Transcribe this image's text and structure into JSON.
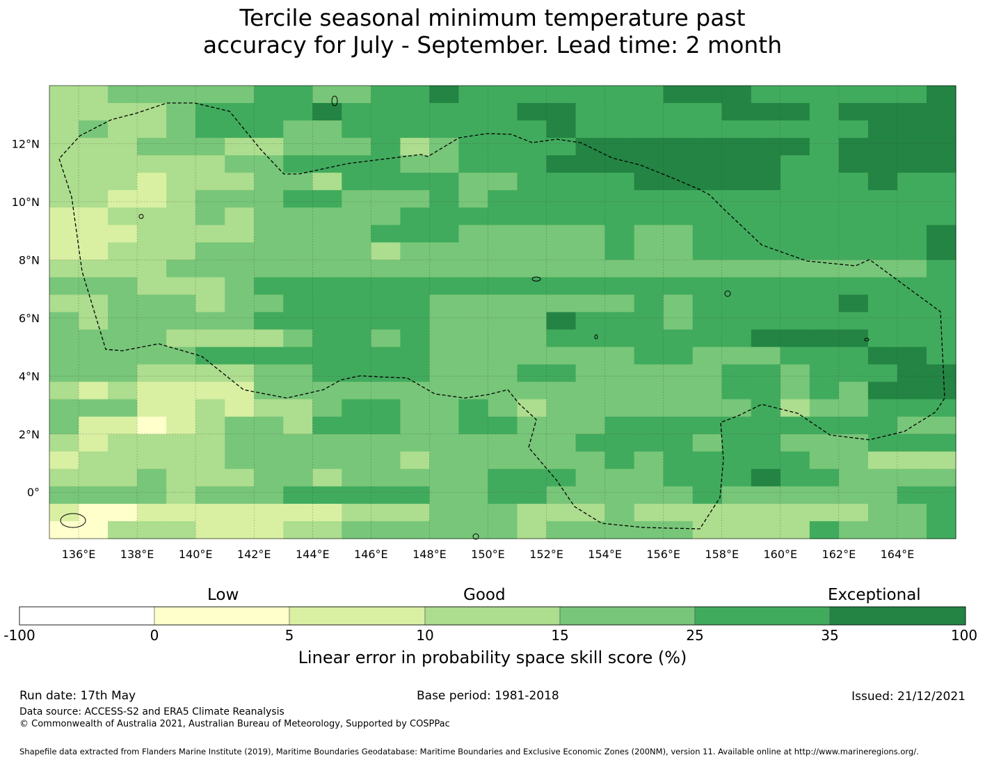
{
  "title": {
    "line1": "Tercile seasonal minimum temperature past",
    "line2": "accuracy for July - September. Lead time: 2 month"
  },
  "map": {
    "lon_range": [
      135,
      166
    ],
    "lat_range": [
      -1.6,
      14
    ],
    "lon_ticks": [
      "136°E",
      "138°E",
      "140°E",
      "142°E",
      "144°E",
      "146°E",
      "148°E",
      "150°E",
      "152°E",
      "154°E",
      "156°E",
      "158°E",
      "160°E",
      "162°E",
      "164°E"
    ],
    "lon_values": [
      136,
      138,
      140,
      142,
      144,
      146,
      148,
      150,
      152,
      154,
      156,
      158,
      160,
      162,
      164
    ],
    "lat_ticks": [
      "12°N",
      "10°N",
      "8°N",
      "6°N",
      "4°N",
      "2°N",
      "0°"
    ],
    "lat_values": [
      12,
      10,
      8,
      6,
      4,
      2,
      0
    ],
    "grid": true,
    "grid_rows": [
      "3344444554455655555556665555556",
      "3333455556555555665555566656666",
      "3433455544555555565555555555666",
      "3334443344453455556666666656666",
      "3333334455554455566666666556666",
      "3332333443555544555566666555655",
      "3322344455444545555555555555555",
      "2233343444445555555555555555555",
      "2223333444455544444544555555556",
      "2233344444434444444544555555556",
      "3333444444444444444444444444445",
      "4443334555555555555555555555555",
      "3344434455555444444454555556555",
      "4344444555555444465554555555555",
      "4444333345545444455555556666555",
      "4444455555555444444455444555665",
      "4443333445555444554444455455566",
      "3232222444444444444444455454666",
      "4442232334554454344444445344555",
      "4221234435554455444555555555544",
      "3233334444444444445555455444555",
      "2333334444443444444545555544333",
      "3334333443444445554445556554444",
      "4444344455555445544444544444455",
      "2112222222333444333433333333445",
      "1133322233444444344444333354445"
    ],
    "palette": [
      "#ffffff",
      "#ffffcc",
      "#d9f0a3",
      "#addd8e",
      "#78c679",
      "#41ab5d",
      "#238443"
    ],
    "legend_levels": [
      "-100",
      "0",
      "5",
      "10",
      "15",
      "25",
      "35",
      "100"
    ],
    "categories": [
      "Low",
      "Good",
      "Exceptional"
    ],
    "colorbar_title": "Linear error in probability space skill score (%)"
  },
  "footer": {
    "run_date": "Run date: 17th May",
    "base_period": "Base period: 1981-2018",
    "issued": "Issued: 21/12/2021",
    "data_source": "Data source: ACCESS-S2 and ERA5 Climate Reanalysis",
    "copyright": "© Commonwealth of Australia 2021, Australian Bureau of Meteorology, Supported by COSPPac",
    "shapefile": "Shapefile data extracted from Flanders Marine Institute (2019), Maritime Boundaries Geodatabase: Maritime Boundaries and Exclusive Economic Zones (200NM), version 11. Available online at http://www.marineregions.org/."
  }
}
